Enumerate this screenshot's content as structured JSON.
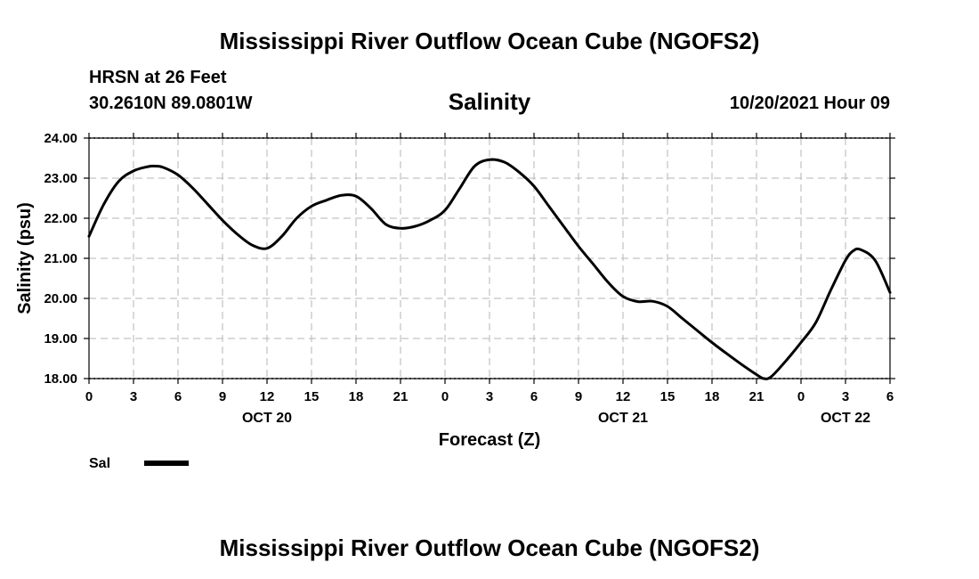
{
  "page_title": "Mississippi River Outflow Ocean Cube (NGOFS2)",
  "footer_title": "Mississippi River Outflow Ocean Cube (NGOFS2)",
  "station": {
    "line1": "HRSN at 26 Feet",
    "line2": "30.2610N  89.0801W"
  },
  "run_time": "10/20/2021 Hour 09",
  "chart_data": {
    "type": "line",
    "title": "Salinity",
    "xlabel": "Forecast (Z)",
    "ylabel": "Salinity (psu)",
    "xlim": [
      0,
      54
    ],
    "ylim": [
      18.0,
      24.0
    ],
    "y_ticks": [
      "18.00",
      "19.00",
      "20.00",
      "21.00",
      "22.00",
      "23.00",
      "24.00"
    ],
    "x_ticks": [
      {
        "hour": 0,
        "label": "0"
      },
      {
        "hour": 3,
        "label": "3"
      },
      {
        "hour": 6,
        "label": "6"
      },
      {
        "hour": 9,
        "label": "9"
      },
      {
        "hour": 12,
        "label": "12"
      },
      {
        "hour": 15,
        "label": "15"
      },
      {
        "hour": 18,
        "label": "18"
      },
      {
        "hour": 21,
        "label": "21"
      },
      {
        "hour": 24,
        "label": "0"
      },
      {
        "hour": 27,
        "label": "3"
      },
      {
        "hour": 30,
        "label": "6"
      },
      {
        "hour": 33,
        "label": "9"
      },
      {
        "hour": 36,
        "label": "12"
      },
      {
        "hour": 39,
        "label": "15"
      },
      {
        "hour": 42,
        "label": "18"
      },
      {
        "hour": 45,
        "label": "21"
      },
      {
        "hour": 48,
        "label": "0"
      },
      {
        "hour": 51,
        "label": "3"
      },
      {
        "hour": 54,
        "label": "6"
      }
    ],
    "date_labels": [
      {
        "hour": 12,
        "label": "OCT 20"
      },
      {
        "hour": 36,
        "label": "OCT 21"
      },
      {
        "hour": 51,
        "label": "OCT 22"
      }
    ],
    "grid": true,
    "series": [
      {
        "name": "Sal",
        "color": "#000000",
        "x": [
          0,
          1,
          2,
          3,
          4,
          4.5,
          5,
          6,
          7,
          8,
          9,
          10,
          11,
          12,
          13,
          14,
          15,
          16,
          17,
          18,
          19,
          20,
          21,
          22,
          23,
          24,
          25,
          26,
          27,
          28,
          29,
          30,
          31,
          32,
          33,
          34,
          35,
          36,
          37,
          38,
          39,
          40,
          41,
          42,
          43,
          44,
          45,
          45.5,
          46,
          47,
          48,
          49,
          50,
          51,
          51.5,
          52,
          53,
          54
        ],
        "values": [
          21.55,
          22.35,
          22.92,
          23.18,
          23.29,
          23.3,
          23.27,
          23.08,
          22.75,
          22.35,
          21.95,
          21.6,
          21.33,
          21.25,
          21.55,
          22.0,
          22.3,
          22.45,
          22.57,
          22.55,
          22.25,
          21.85,
          21.75,
          21.8,
          21.95,
          22.2,
          22.75,
          23.3,
          23.46,
          23.4,
          23.15,
          22.8,
          22.3,
          21.8,
          21.3,
          20.85,
          20.4,
          20.05,
          19.92,
          19.93,
          19.8,
          19.5,
          19.2,
          18.9,
          18.62,
          18.35,
          18.1,
          18.0,
          18.05,
          18.45,
          18.9,
          19.4,
          20.2,
          20.95,
          21.18,
          21.22,
          20.95,
          20.15
        ]
      }
    ],
    "legend": {
      "label": "Sal",
      "position": "bottom-left"
    }
  }
}
